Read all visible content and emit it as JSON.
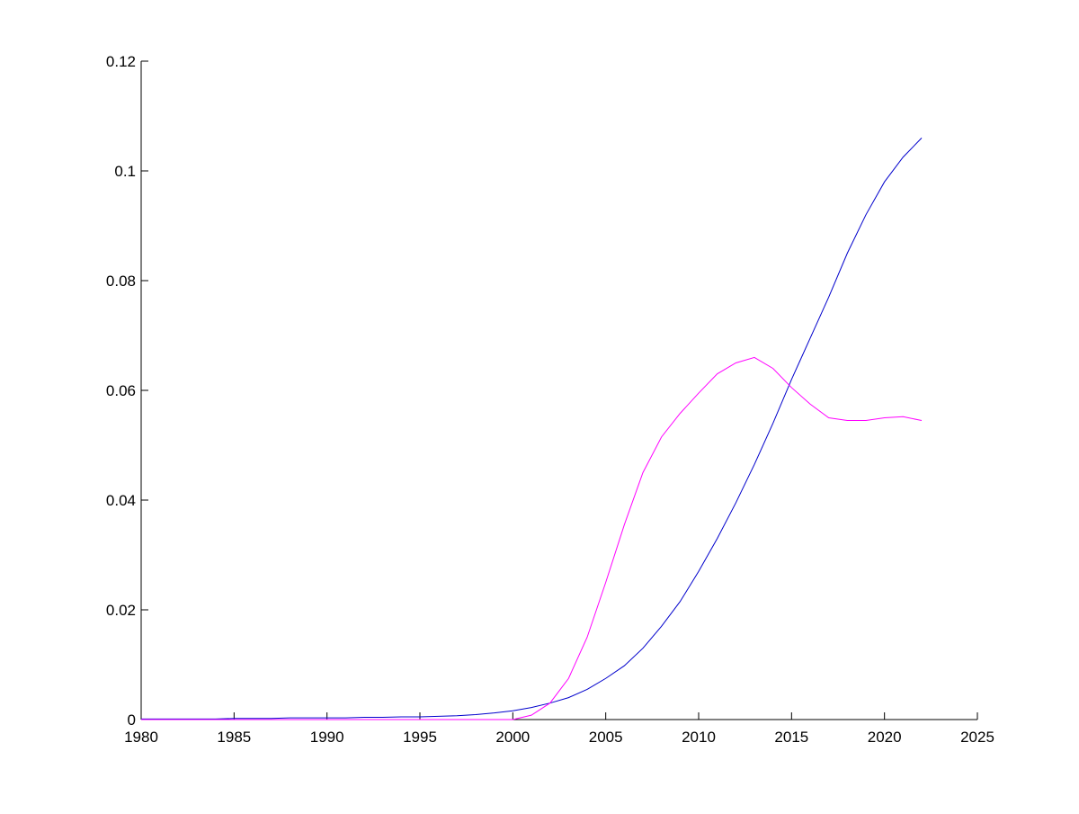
{
  "chart_data": {
    "type": "line",
    "x": [
      1980,
      1981,
      1982,
      1983,
      1984,
      1985,
      1986,
      1987,
      1988,
      1989,
      1990,
      1991,
      1992,
      1993,
      1994,
      1995,
      1996,
      1997,
      1998,
      1999,
      2000,
      2001,
      2002,
      2003,
      2004,
      2005,
      2006,
      2007,
      2008,
      2009,
      2010,
      2011,
      2012,
      2013,
      2014,
      2015,
      2016,
      2017,
      2018,
      2019,
      2020,
      2021,
      2022
    ],
    "series": [
      {
        "color": "#0000cc",
        "values": [
          0.0001,
          0.0001,
          0.0001,
          0.0001,
          0.0001,
          0.0002,
          0.0002,
          0.0002,
          0.0003,
          0.0003,
          0.0003,
          0.0003,
          0.0004,
          0.0004,
          0.0005,
          0.0005,
          0.0006,
          0.0007,
          0.0009,
          0.0012,
          0.0016,
          0.0022,
          0.003,
          0.004,
          0.0055,
          0.0075,
          0.0098,
          0.013,
          0.017,
          0.0215,
          0.027,
          0.033,
          0.0395,
          0.0465,
          0.054,
          0.062,
          0.0695,
          0.077,
          0.085,
          0.092,
          0.098,
          0.1025,
          0.106
        ]
      },
      {
        "color": "#ff00ff",
        "values": [
          0,
          0,
          0,
          0,
          0,
          0,
          0,
          0,
          0,
          0,
          0,
          0,
          0,
          0,
          0,
          0,
          0,
          0,
          0,
          0,
          0,
          0.0008,
          0.003,
          0.0075,
          0.015,
          0.025,
          0.0355,
          0.045,
          0.0515,
          0.0558,
          0.0595,
          0.063,
          0.065,
          0.066,
          0.064,
          0.0605,
          0.0575,
          0.055,
          0.0545,
          0.0545,
          0.055,
          0.0552,
          0.0545
        ]
      }
    ],
    "xlim": [
      1980,
      2025
    ],
    "xticks": [
      1980,
      1985,
      1990,
      1995,
      2000,
      2005,
      2010,
      2015,
      2020,
      2025
    ],
    "ylim": [
      0,
      0.12
    ],
    "yticks": [
      0,
      0.02,
      0.04,
      0.06,
      0.08,
      0.1,
      0.12
    ]
  }
}
